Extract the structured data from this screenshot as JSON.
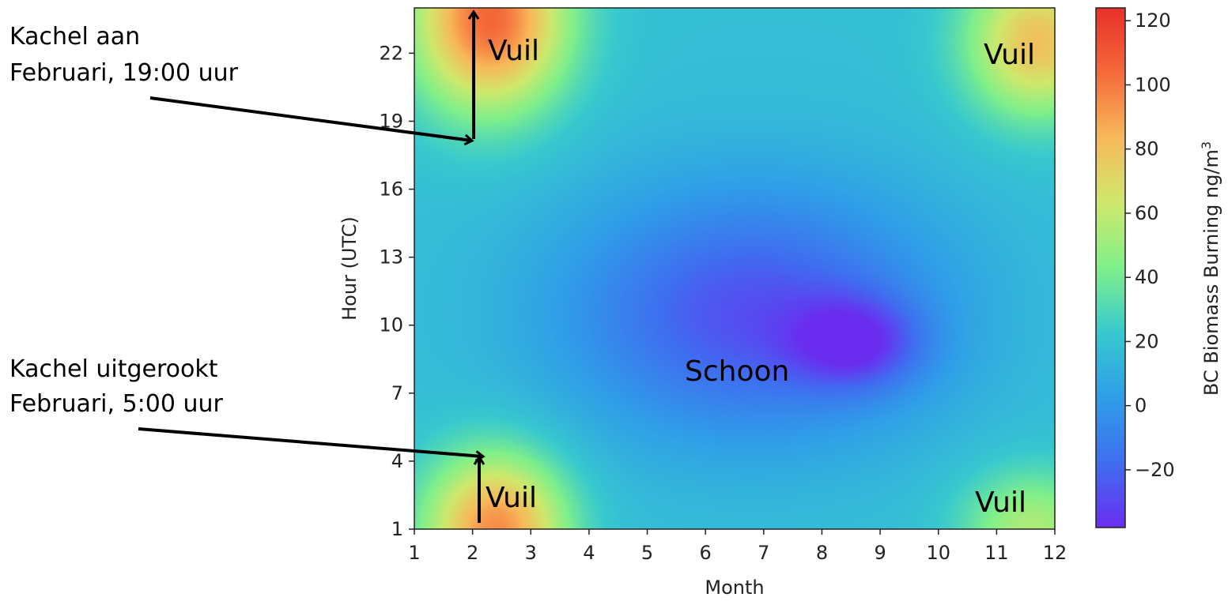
{
  "chart_data": {
    "type": "heatmap",
    "xlabel": "Month",
    "ylabel": "Hour (UTC)",
    "x_ticks": [
      1,
      2,
      3,
      4,
      5,
      6,
      7,
      8,
      9,
      10,
      11,
      12
    ],
    "y_ticks": [
      1,
      4,
      7,
      10,
      13,
      16,
      19,
      22
    ],
    "xlim": [
      1,
      12
    ],
    "ylim": [
      1,
      24
    ],
    "colorbar": {
      "label": "BC Biomass Burning ng/m³",
      "ticks": [
        120,
        100,
        80,
        60,
        40,
        20,
        0,
        -20
      ],
      "tick_labels": [
        "120",
        "100",
        "80",
        "60",
        "40",
        "20",
        "0",
        "−20"
      ],
      "range": [
        -38,
        124
      ]
    },
    "colormap": [
      "#6a2df0",
      "#3f6ef0",
      "#2f9ee8",
      "#37c9cf",
      "#80f08a",
      "#cfe86c",
      "#f7b95a",
      "#f56a3a",
      "#e8302a"
    ],
    "grid": false,
    "surface": {
      "background_value": 18,
      "features": [
        {
          "month": 2.3,
          "hour": 23.5,
          "value": 105,
          "spread_month": 1.3,
          "spread_hour": 4.0
        },
        {
          "month": 11.7,
          "hour": 22.5,
          "value": 80,
          "spread_month": 1.2,
          "spread_hour": 3.3
        },
        {
          "month": 2.4,
          "hour": 1.0,
          "value": 95,
          "spread_month": 1.2,
          "spread_hour": 3.3
        },
        {
          "month": 11.6,
          "hour": 1.0,
          "value": 55,
          "spread_month": 1.2,
          "spread_hour": 2.6
        },
        {
          "month": 6.8,
          "hour": 10.5,
          "value": -27,
          "spread_month": 3.2,
          "spread_hour": 5.5
        },
        {
          "month": 8.6,
          "hour": 9.2,
          "value": -16,
          "spread_month": 1.1,
          "spread_hour": 2.0
        }
      ]
    }
  },
  "annotations": {
    "stove_on_line1": "Kachel aan",
    "stove_on_line2": "Februari, 19:00 uur",
    "stove_out_line1": "Kachel uitgerookt",
    "stove_out_line2": "Februari, 5:00 uur",
    "dirty_label": "Vuil",
    "clean_label": "Schoon"
  }
}
